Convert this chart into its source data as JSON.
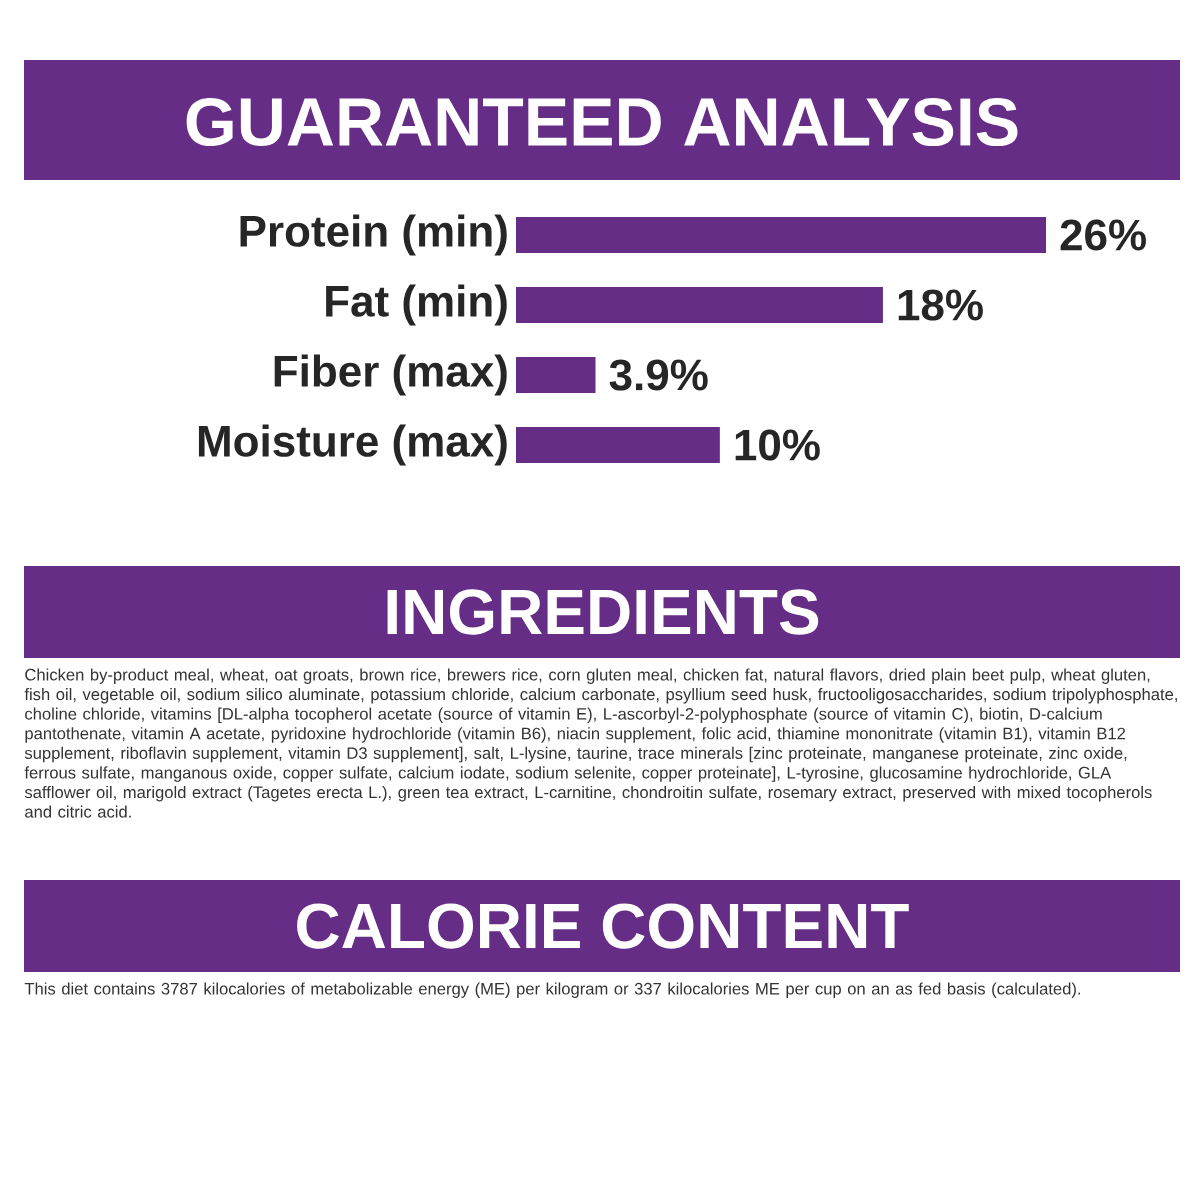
{
  "chart_data": {
    "type": "bar",
    "orientation": "horizontal",
    "title": "GUARANTEED ANALYSIS",
    "categories": [
      "Protein (min)",
      "Fat (min)",
      "Fiber (max)",
      "Moisture (max)"
    ],
    "values": [
      26,
      18,
      3.9,
      10
    ],
    "value_labels": [
      "26%",
      "18%",
      "3.9%",
      "10%"
    ],
    "color": "#652d86",
    "annotations": [
      "INGREDIENTS",
      "Chicken by-product meal, wheat, oat groats, brown rice, brewers rice, corn gluten meal, chicken fat, natural flavors, dried plain beet pulp, wheat gluten, fish oil, vegetable oil, sodium silico aluminate, potassium chloride, calcium carbonate, psyllium seed husk, fructooligosaccharides, sodium tripolyphosphate, choline chloride, vitamins [DL-alpha tocopherol acetate (source of vitamin E), L-ascorbyl-2-polyphosphate (source of vitamin C), biotin, D-calcium pantothenate, vitamin A acetate, pyridoxine hydrochloride (vitamin B6), niacin supplement, folic acid, thiamine mononitrate (vitamin B1), vitamin B12 supplement, riboflavin supplement, vitamin D3 supplement], salt, L-lysine, taurine, trace minerals [zinc proteinate, manganese proteinate, zinc oxide, ferrous sulfate, manganous oxide, copper sulfate, calcium iodate, sodium selenite, copper proteinate], L-tyrosine, glucosamine hydrochloride, GLA safflower oil, marigold extract (Tagetes erecta L.), green tea extract, L-carnitine, chondroitin sulfate, rosemary extract, preserved with mixed tocopherols and citric acid.",
      "CALORIE CONTENT",
      "This diet contains 3787 kilocalories of metabolizable energy (ME) per kilogram or 337 kilocalories ME per cup on an as fed basis (calculated)."
    ]
  }
}
